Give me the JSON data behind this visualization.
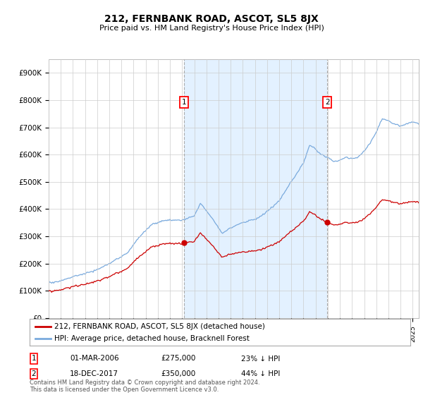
{
  "title": "212, FERNBANK ROAD, ASCOT, SL5 8JX",
  "subtitle": "Price paid vs. HM Land Registry's House Price Index (HPI)",
  "ylim": [
    0,
    950000
  ],
  "yticks": [
    0,
    100000,
    200000,
    300000,
    400000,
    500000,
    600000,
    700000,
    800000,
    900000
  ],
  "ytick_labels": [
    "£0",
    "£100K",
    "£200K",
    "£300K",
    "£400K",
    "£500K",
    "£600K",
    "£700K",
    "£800K",
    "£900K"
  ],
  "xlim_start": 1995.0,
  "xlim_end": 2025.5,
  "red_line_color": "#cc0000",
  "blue_line_color": "#7aaadd",
  "shade_color": "#ddeeff",
  "transaction1_date": 2006.17,
  "transaction1_price": 275000,
  "transaction2_date": 2017.96,
  "transaction2_price": 350000,
  "legend_red": "212, FERNBANK ROAD, ASCOT, SL5 8JX (detached house)",
  "legend_blue": "HPI: Average price, detached house, Bracknell Forest",
  "label1_date_str": "01-MAR-2006",
  "label1_price_str": "£275,000",
  "label1_pct_str": "23% ↓ HPI",
  "label2_date_str": "18-DEC-2017",
  "label2_price_str": "£350,000",
  "label2_pct_str": "44% ↓ HPI",
  "footnote": "Contains HM Land Registry data © Crown copyright and database right 2024.\nThis data is licensed under the Open Government Licence v3.0.",
  "background_color": "#ffffff",
  "grid_color": "#cccccc"
}
